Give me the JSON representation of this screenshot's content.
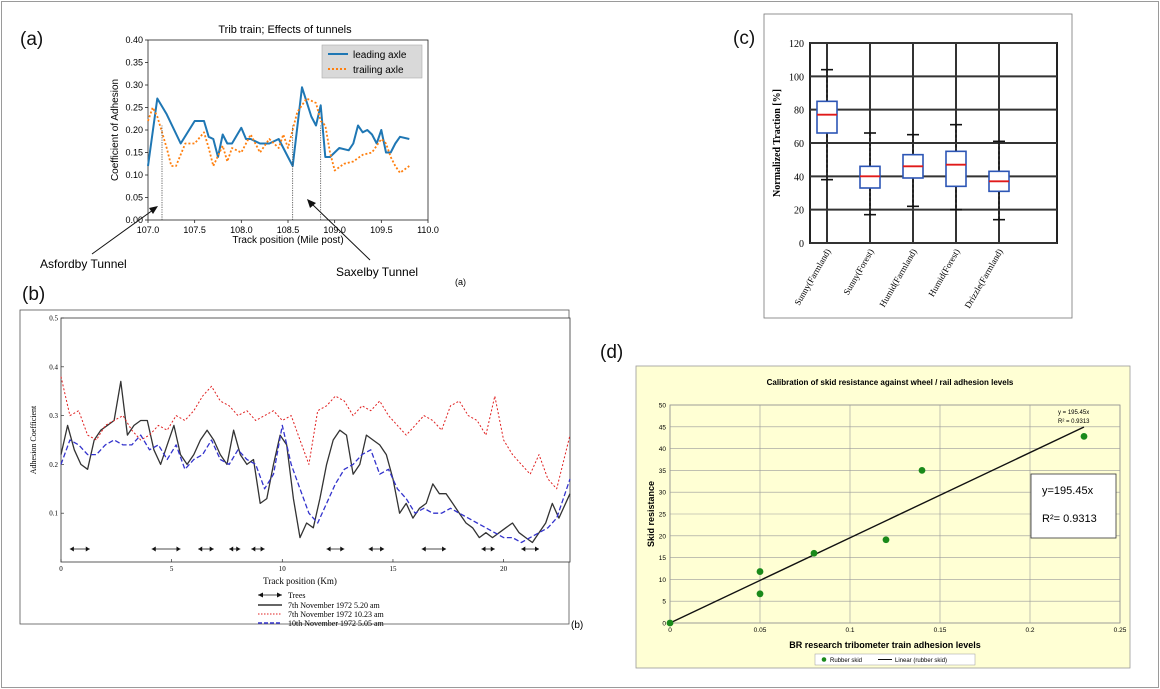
{
  "chart_data": [
    {
      "id": "a",
      "panel": "(a)",
      "panel_caption": "(a)",
      "type": "line",
      "title": "Trib train; Effects of tunnels",
      "xlabel": "Track position (Mile post)",
      "ylabel": "Coefficient of Adhesion",
      "xlim": [
        107.0,
        110.0
      ],
      "ylim": [
        0.0,
        0.4
      ],
      "xticks": [
        "107.0",
        "107.5",
        "108.0",
        "108.5",
        "109.0",
        "109.5",
        "110.0"
      ],
      "yticks": [
        "0.00",
        "0.05",
        "0.10",
        "0.15",
        "0.20",
        "0.25",
        "0.30",
        "0.35",
        "0.40"
      ],
      "legend": "top-right",
      "series": [
        {
          "name": "leading axle",
          "color": "#1f77b4",
          "style": "solid",
          "x": [
            107.0,
            107.1,
            107.2,
            107.35,
            107.5,
            107.6,
            107.65,
            107.7,
            107.75,
            107.8,
            107.85,
            107.9,
            108.0,
            108.05,
            108.1,
            108.2,
            108.3,
            108.4,
            108.5,
            108.55,
            108.65,
            108.75,
            108.8,
            108.85,
            108.9,
            108.95,
            109.05,
            109.15,
            109.2,
            109.25,
            109.3,
            109.35,
            109.4,
            109.45,
            109.5,
            109.55,
            109.6,
            109.65,
            109.7,
            109.8
          ],
          "y": [
            0.12,
            0.27,
            0.235,
            0.17,
            0.22,
            0.22,
            0.185,
            0.18,
            0.14,
            0.19,
            0.17,
            0.17,
            0.205,
            0.18,
            0.18,
            0.17,
            0.17,
            0.18,
            0.14,
            0.12,
            0.295,
            0.23,
            0.21,
            0.255,
            0.14,
            0.14,
            0.16,
            0.155,
            0.17,
            0.21,
            0.195,
            0.2,
            0.19,
            0.17,
            0.2,
            0.15,
            0.15,
            0.17,
            0.185,
            0.18
          ]
        },
        {
          "name": "trailing axle",
          "color": "#ff7f0e",
          "style": "dotted",
          "x": [
            107.0,
            107.05,
            107.1,
            107.2,
            107.25,
            107.3,
            107.4,
            107.5,
            107.6,
            107.65,
            107.7,
            107.8,
            107.85,
            107.9,
            108.0,
            108.1,
            108.2,
            108.3,
            108.4,
            108.45,
            108.5,
            108.6,
            108.7,
            108.8,
            108.85,
            108.9,
            108.95,
            109.0,
            109.1,
            109.2,
            109.3,
            109.4,
            109.5,
            109.55,
            109.6,
            109.65,
            109.7,
            109.8
          ],
          "y": [
            0.22,
            0.25,
            0.23,
            0.16,
            0.12,
            0.12,
            0.17,
            0.17,
            0.195,
            0.16,
            0.12,
            0.165,
            0.13,
            0.16,
            0.15,
            0.19,
            0.15,
            0.18,
            0.16,
            0.19,
            0.16,
            0.24,
            0.27,
            0.26,
            0.22,
            0.21,
            0.15,
            0.11,
            0.125,
            0.13,
            0.145,
            0.15,
            0.18,
            0.17,
            0.14,
            0.12,
            0.105,
            0.12
          ]
        }
      ],
      "markers": [
        107.15,
        108.55,
        108.85
      ],
      "annotations": [
        "Asfordby Tunnel",
        "Saxelby Tunnel"
      ]
    },
    {
      "id": "b",
      "panel": "(b)",
      "panel_caption": "(b)",
      "type": "line",
      "xlabel": "Track position (Km)",
      "ylabel": "Adhesion Coefficient",
      "xlim": [
        0,
        23
      ],
      "ylim": [
        0,
        0.5
      ],
      "xticks": [
        "0",
        "5",
        "10",
        "15",
        "20"
      ],
      "yticks": [
        "0.1",
        "0.2",
        "0.3",
        "0.4",
        "0.5"
      ],
      "legend": "bottom",
      "legend_trees_label": "Trees",
      "tree_spans": [
        [
          0.4,
          1.3
        ],
        [
          4.1,
          5.4
        ],
        [
          6.2,
          6.9
        ],
        [
          7.6,
          8.1
        ],
        [
          8.6,
          9.2
        ],
        [
          12.0,
          12.8
        ],
        [
          13.9,
          14.6
        ],
        [
          16.3,
          17.4
        ],
        [
          19.0,
          19.6
        ],
        [
          20.8,
          21.6
        ]
      ],
      "series": [
        {
          "name": "7th November 1972 5.20 am",
          "color": "#333333",
          "style": "solid",
          "x": [
            0,
            0.3,
            0.6,
            0.9,
            1.2,
            1.5,
            1.8,
            2.1,
            2.4,
            2.7,
            3.0,
            3.3,
            3.6,
            3.9,
            4.2,
            4.5,
            4.8,
            5.1,
            5.4,
            5.7,
            6.0,
            6.3,
            6.6,
            6.9,
            7.2,
            7.5,
            7.8,
            8.1,
            8.4,
            8.7,
            9.0,
            9.3,
            9.6,
            9.9,
            10.2,
            10.5,
            10.8,
            11.1,
            11.4,
            11.7,
            12.0,
            12.3,
            12.6,
            12.9,
            13.2,
            13.5,
            13.8,
            14.1,
            14.4,
            14.7,
            15.0,
            15.3,
            15.6,
            15.9,
            16.2,
            16.5,
            16.8,
            17.1,
            17.4,
            17.7,
            18.0,
            18.3,
            18.6,
            18.9,
            19.2,
            19.5,
            19.8,
            20.1,
            20.4,
            20.7,
            21.0,
            21.3,
            21.6,
            21.9,
            22.2,
            22.5,
            23.0
          ],
          "y": [
            0.22,
            0.28,
            0.23,
            0.2,
            0.19,
            0.25,
            0.27,
            0.28,
            0.29,
            0.37,
            0.26,
            0.28,
            0.29,
            0.29,
            0.23,
            0.2,
            0.24,
            0.28,
            0.22,
            0.2,
            0.22,
            0.25,
            0.27,
            0.25,
            0.22,
            0.2,
            0.27,
            0.22,
            0.2,
            0.21,
            0.12,
            0.13,
            0.2,
            0.26,
            0.24,
            0.13,
            0.05,
            0.08,
            0.07,
            0.13,
            0.2,
            0.25,
            0.27,
            0.26,
            0.18,
            0.2,
            0.26,
            0.25,
            0.24,
            0.22,
            0.17,
            0.1,
            0.12,
            0.09,
            0.11,
            0.12,
            0.16,
            0.14,
            0.14,
            0.12,
            0.1,
            0.08,
            0.07,
            0.05,
            0.06,
            0.05,
            0.06,
            0.07,
            0.08,
            0.06,
            0.05,
            0.04,
            0.06,
            0.08,
            0.12,
            0.09,
            0.14
          ]
        },
        {
          "name": "7th November 1972 10.23 am",
          "color": "#e02020",
          "style": "dotted",
          "x": [
            0,
            0.4,
            0.8,
            1.2,
            1.6,
            2.0,
            2.4,
            2.8,
            3.2,
            3.6,
            4.0,
            4.4,
            4.8,
            5.2,
            5.6,
            6.0,
            6.4,
            6.8,
            7.2,
            7.6,
            8.0,
            8.4,
            8.8,
            9.2,
            9.6,
            10.0,
            10.4,
            10.8,
            11.2,
            11.6,
            12.0,
            12.4,
            12.8,
            13.2,
            13.6,
            14.0,
            14.4,
            14.8,
            15.2,
            15.6,
            16.0,
            16.4,
            16.8,
            17.2,
            17.6,
            18.0,
            18.4,
            18.8,
            19.2,
            19.6,
            20.0,
            20.4,
            20.8,
            21.2,
            21.6,
            22.0,
            22.4,
            23.0
          ],
          "y": [
            0.38,
            0.3,
            0.31,
            0.26,
            0.25,
            0.28,
            0.29,
            0.3,
            0.27,
            0.25,
            0.26,
            0.28,
            0.27,
            0.3,
            0.29,
            0.31,
            0.34,
            0.36,
            0.33,
            0.32,
            0.3,
            0.31,
            0.29,
            0.3,
            0.31,
            0.29,
            0.3,
            0.25,
            0.2,
            0.31,
            0.32,
            0.34,
            0.33,
            0.3,
            0.32,
            0.31,
            0.33,
            0.3,
            0.28,
            0.26,
            0.28,
            0.3,
            0.29,
            0.27,
            0.32,
            0.33,
            0.3,
            0.29,
            0.26,
            0.34,
            0.25,
            0.22,
            0.2,
            0.18,
            0.22,
            0.17,
            0.15,
            0.26
          ]
        },
        {
          "name": "10th November 1972 5.05 am",
          "color": "#3333cc",
          "style": "dashed",
          "x": [
            0,
            0.4,
            0.8,
            1.2,
            1.6,
            2.0,
            2.4,
            2.8,
            3.2,
            3.6,
            4.0,
            4.4,
            4.8,
            5.2,
            5.6,
            6.0,
            6.4,
            6.8,
            7.2,
            7.6,
            8.0,
            8.4,
            8.8,
            9.2,
            9.6,
            10.0,
            10.4,
            10.8,
            11.2,
            11.6,
            12.0,
            12.4,
            12.8,
            13.2,
            13.6,
            14.0,
            14.4,
            14.8,
            15.2,
            15.6,
            16.0,
            16.4,
            16.8,
            17.2,
            17.6,
            18.0,
            18.4,
            18.8,
            19.2,
            19.6,
            20.0,
            20.4,
            20.8,
            21.2,
            21.6,
            22.0,
            22.4,
            23.0
          ],
          "y": [
            0.2,
            0.25,
            0.24,
            0.22,
            0.22,
            0.24,
            0.25,
            0.24,
            0.24,
            0.26,
            0.23,
            0.24,
            0.21,
            0.24,
            0.19,
            0.21,
            0.22,
            0.25,
            0.21,
            0.2,
            0.23,
            0.21,
            0.2,
            0.15,
            0.18,
            0.28,
            0.2,
            0.15,
            0.1,
            0.08,
            0.12,
            0.16,
            0.19,
            0.2,
            0.22,
            0.23,
            0.18,
            0.19,
            0.15,
            0.13,
            0.1,
            0.11,
            0.1,
            0.1,
            0.11,
            0.1,
            0.09,
            0.08,
            0.07,
            0.06,
            0.05,
            0.05,
            0.04,
            0.05,
            0.06,
            0.07,
            0.09,
            0.17
          ]
        }
      ]
    },
    {
      "id": "c",
      "panel": "(c)",
      "type": "box",
      "ylabel": "Normalized Traction [%]",
      "ylim": [
        0,
        120
      ],
      "yticks": [
        "0",
        "20",
        "40",
        "60",
        "80",
        "100",
        "120"
      ],
      "categories": [
        "Sunny(Farmland)",
        "Sunny(Forest)",
        "Humid(Farmland)",
        "Humid(Forest)",
        "Drizzle(Farmland)"
      ],
      "boxes": [
        {
          "min": 38,
          "q1": 66,
          "median": 77,
          "q3": 85,
          "max": 104
        },
        {
          "min": 17,
          "q1": 33,
          "median": 40,
          "q3": 46,
          "max": 66
        },
        {
          "min": 22,
          "q1": 39,
          "median": 46,
          "q3": 53,
          "max": 65
        },
        {
          "min": 20,
          "q1": 34,
          "median": 47,
          "q3": 55,
          "max": 71
        },
        {
          "min": 14,
          "q1": 31,
          "median": 37,
          "q3": 43,
          "max": 61
        }
      ]
    },
    {
      "id": "d",
      "panel": "(d)",
      "type": "scatter",
      "title": "Calibration of skid resistance against wheel / rail adhesion levels",
      "xlabel": "BR research tribometer train adhesion levels",
      "ylabel": "Skid resistance",
      "xlim": [
        0,
        0.25
      ],
      "ylim": [
        0,
        50
      ],
      "xticks": [
        "0",
        "0.05",
        "0.1",
        "0.15",
        "0.2",
        "0.25"
      ],
      "yticks": [
        "0",
        "5",
        "10",
        "15",
        "20",
        "25",
        "30",
        "35",
        "40",
        "45",
        "50"
      ],
      "points": [
        [
          0,
          0
        ],
        [
          0.05,
          11.8
        ],
        [
          0.05,
          6.7
        ],
        [
          0.08,
          16
        ],
        [
          0.12,
          19.1
        ],
        [
          0.14,
          35
        ],
        [
          0.23,
          42.8
        ]
      ],
      "point_color": "#1a8a1a",
      "trendline": {
        "slope": 195.45,
        "x_range": [
          0,
          0.23
        ]
      },
      "small_label_1": "y = 195.45x",
      "small_label_2": "R² = 0.9313",
      "box_label_1": "y=195.45x",
      "box_label_2": "R²= 0.9313",
      "legend": [
        "Rubber skid",
        "Linear (rubber skid)"
      ],
      "plot_bg": "#ffffd4"
    }
  ]
}
